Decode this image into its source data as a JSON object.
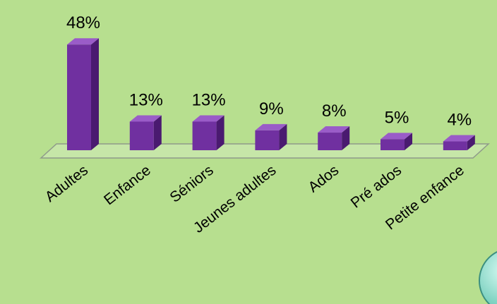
{
  "chart_data": {
    "type": "bar",
    "categories": [
      "Adultes",
      "Enfance",
      "Séniors",
      "Jeunes adultes",
      "Ados",
      "Pré ados",
      "Petite enfance"
    ],
    "values": [
      48,
      13,
      13,
      9,
      8,
      5,
      4
    ],
    "value_labels": [
      "48%",
      "13%",
      "13%",
      "9%",
      "8%",
      "5%",
      "4%"
    ],
    "color": "#7030a0"
  }
}
